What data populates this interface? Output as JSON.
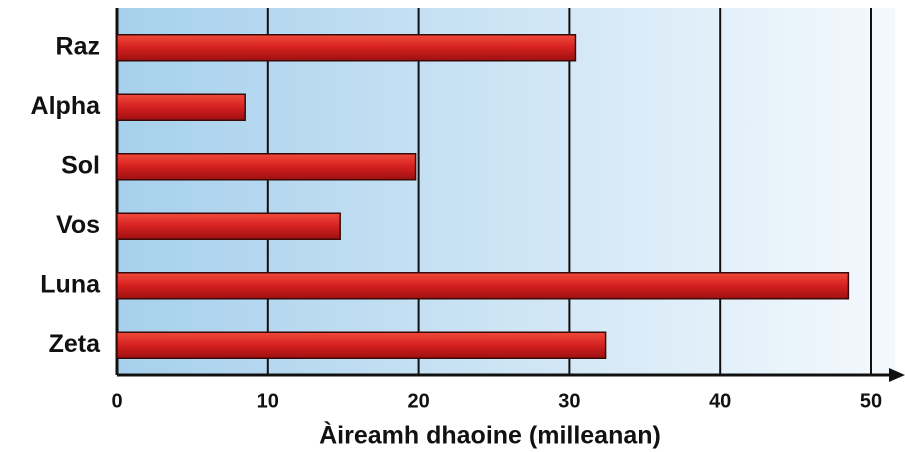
{
  "chart_data": {
    "type": "bar",
    "x_label": "Àireamh dhaoine (milleanan)",
    "categories": [
      "Raz",
      "Alpha",
      "Sol",
      "Vos",
      "Luna",
      "Zeta"
    ],
    "values": [
      30.4,
      8.5,
      19.8,
      14.8,
      48.5,
      32.4
    ],
    "color": "#d42020",
    "xlim": [
      0,
      50
    ],
    "xticks": [
      0,
      10,
      20,
      30,
      40,
      50
    ],
    "grid": true
  }
}
